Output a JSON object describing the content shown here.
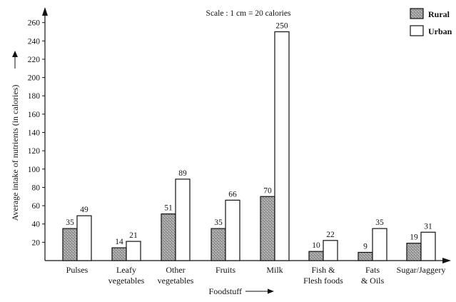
{
  "chart_data": {
    "type": "bar",
    "title": "",
    "note": "Scale : 1 cm = 20 calories",
    "xlabel": "Foodstuff",
    "ylabel": "Average intake of nutrients (in calories)",
    "ylim": [
      0,
      270
    ],
    "yticks": [
      20,
      40,
      60,
      80,
      100,
      120,
      140,
      160,
      180,
      200,
      220,
      240,
      260
    ],
    "grid": false,
    "legend_position": "top-right",
    "categories": [
      [
        "Pulses"
      ],
      [
        "Leafy",
        "vegetables"
      ],
      [
        "Other",
        "vegetables"
      ],
      [
        "Fruits"
      ],
      [
        "Milk"
      ],
      [
        "Fish &",
        "Flesh foods"
      ],
      [
        "Fats",
        "& Oils"
      ],
      [
        "Sugar/Jaggery"
      ]
    ],
    "series": [
      {
        "name": "Rural",
        "values": [
          35,
          14,
          51,
          35,
          70,
          10,
          9,
          19
        ],
        "color": "#9a9a9a"
      },
      {
        "name": "Urban",
        "values": [
          49,
          21,
          89,
          66,
          250,
          22,
          35,
          31
        ],
        "color": "#ffffff"
      }
    ]
  }
}
